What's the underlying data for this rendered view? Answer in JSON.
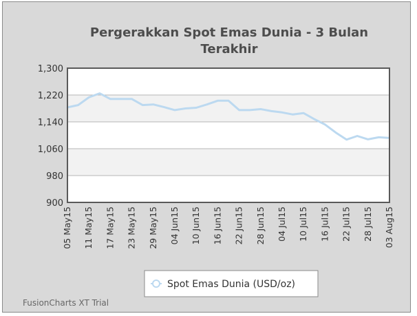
{
  "chart_data": {
    "type": "line",
    "title": "Pergerakkan Spot Emas Dunia - 3 Bulan Terakhir",
    "title_lines": [
      "Pergerakkan Spot Emas Dunia - 3 Bulan",
      "Terakhir"
    ],
    "ylim": [
      900,
      1300
    ],
    "yticks": [
      "1,300",
      "1,220",
      "1,140",
      "1,060",
      "980",
      "900"
    ],
    "ytick_values": [
      1300,
      1220,
      1140,
      1060,
      980,
      900
    ],
    "xtick_labels": [
      "05 May15",
      "11 May15",
      "17 May15",
      "23 May15",
      "29 May15",
      "04 Jun15",
      "10 Jun15",
      "16 Jun15",
      "22 Jun15",
      "28 Jun15",
      "04 Jul15",
      "10 Jul15",
      "16 Jul15",
      "22 Jul15",
      "28 Jul15",
      "03 Aug15"
    ],
    "series": [
      {
        "name": "Spot Emas Dunia (USD/oz)",
        "color": "#bcd9f0",
        "values": [
          1183,
          1190,
          1213,
          1225,
          1208,
          1208,
          1208,
          1190,
          1192,
          1184,
          1175,
          1180,
          1182,
          1192,
          1203,
          1203,
          1175,
          1175,
          1178,
          1172,
          1168,
          1162,
          1166,
          1148,
          1132,
          1108,
          1087,
          1098,
          1088,
          1094,
          1092
        ]
      }
    ],
    "grid": true,
    "alternate_bands": true,
    "legend": "bottom"
  },
  "watermark": "FusionCharts XT Trial",
  "colors": {
    "background": "#d9d9d9",
    "plot_background": "#ffffff",
    "plot_band": "#f2f2f2",
    "plot_border": "#595959",
    "line": "#bcd9f0"
  }
}
